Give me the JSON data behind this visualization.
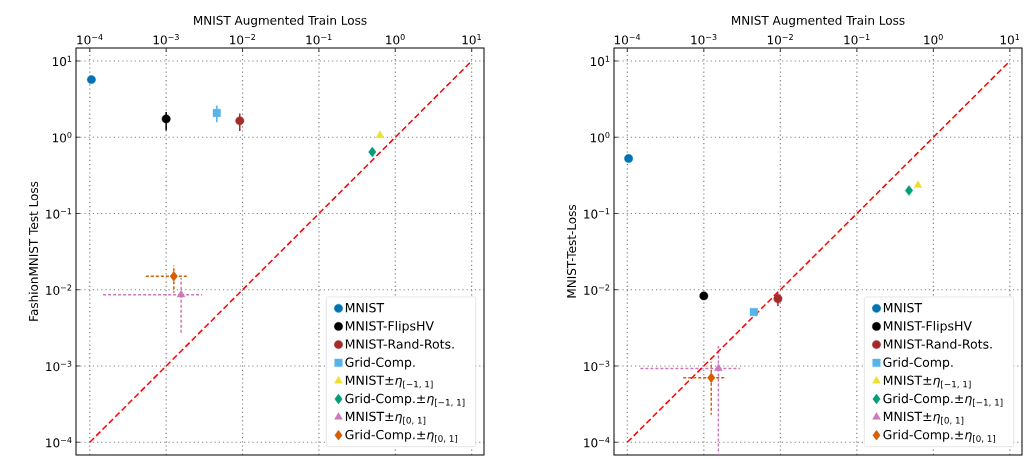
{
  "chart_data": [
    {
      "type": "scatter",
      "xlabel": "MNIST Augmented Train Loss",
      "ylabel": "FashionMNIST Test Loss",
      "log": "xy",
      "grid": true,
      "legend": "bottom right",
      "xlim": [
        6.6e-05,
        14.5
      ],
      "ylim": [
        6.8e-05,
        14.8
      ],
      "xticks": [
        {
          "value": 0.0001,
          "label": "10$^{−4}$"
        },
        {
          "value": 0.001,
          "label": "10$^{−3}$"
        },
        {
          "value": 0.01,
          "label": "10$^{−2}$"
        },
        {
          "value": 0.1,
          "label": "10$^{−1}$"
        },
        {
          "value": 1,
          "label": "10$^{0}$"
        },
        {
          "value": 10,
          "label": "10$^{1}$"
        }
      ],
      "yticks": [
        {
          "value": 0.0001,
          "label": "10$^{−4}$"
        },
        {
          "value": 0.001,
          "label": "10$^{−3}$"
        },
        {
          "value": 0.01,
          "label": "10$^{−2}$"
        },
        {
          "value": 0.1,
          "label": "10$^{−1}$"
        },
        {
          "value": 1,
          "label": "10$^{0}$"
        },
        {
          "value": 10,
          "label": "10$^{1}$"
        }
      ],
      "series": [
        {
          "name": "MNIST",
          "color": "#0173b2",
          "marker": "circle",
          "x": [
            0.000105
          ],
          "values": [
            5.7
          ]
        },
        {
          "name": "MNIST-FlipsHV",
          "color": "#000000",
          "marker": "circle",
          "x": [
            0.001
          ],
          "values": [
            1.74
          ],
          "errors": [
            [
              1.23,
              2.14
            ]
          ]
        },
        {
          "name": "MNIST-Rand-Rots.",
          "color": "#a52a2a",
          "marker": "circle",
          "x": [
            0.0092
          ],
          "values": [
            1.64
          ],
          "errors": [
            [
              1.21,
              2.04
            ]
          ]
        },
        {
          "name": "Grid-Comp.",
          "color": "#56b4e9",
          "marker": "square",
          "x": [
            0.0046
          ],
          "values": [
            2.08
          ],
          "errors": [
            [
              1.57,
              2.6
            ]
          ]
        },
        {
          "name": "MNIST±*η*$_{[−1, 1]}$",
          "color": "#ece133",
          "marker": "triangle",
          "x": [
            0.63
          ],
          "values": [
            1.06
          ]
        },
        {
          "name": "Grid-Comp.±*η*$_{[−1, 1]}$",
          "color": "#029e73",
          "marker": "diamond",
          "x": [
            0.5
          ],
          "values": [
            0.64
          ]
        },
        {
          "name": "MNIST±*η*$_{[0, 1]}$",
          "color": "#cc78bc",
          "marker": "triangle",
          "x": [
            0.00157
          ],
          "values": [
            0.0086
          ],
          "errors": [
            [
              0.00257,
              0.0142
            ]
          ],
          "xerrors": [
            [
              0.000148,
              0.00294
            ]
          ]
        },
        {
          "name": "Grid-Comp.±*η*$_{[0, 1]}$",
          "color": "#d55e00",
          "marker": "diamond",
          "x": [
            0.00126
          ],
          "values": [
            0.015
          ],
          "errors": [
            [
              0.0091,
              0.0208
            ]
          ],
          "xerrors": [
            [
              0.00053,
              0.00196
            ]
          ]
        },
        {
          "type": "line",
          "color": "#ff0000",
          "marker": "none",
          "line_style": "dashed",
          "x": [
            0.0001,
            10
          ],
          "values": [
            0.0001,
            10
          ]
        }
      ]
    },
    {
      "type": "scatter",
      "xlabel": "MNIST Augmented Train Loss",
      "ylabel": "MNIST-Test-Loss",
      "log": "xy",
      "grid": true,
      "legend": "bottom right",
      "xlim": [
        6.7e-05,
        14.4
      ],
      "ylim": [
        6.8e-05,
        14.8
      ],
      "xticks": [
        {
          "value": 0.0001,
          "label": "10$^{−4}$"
        },
        {
          "value": 0.001,
          "label": "10$^{−3}$"
        },
        {
          "value": 0.01,
          "label": "10$^{−2}$"
        },
        {
          "value": 0.1,
          "label": "10$^{−1}$"
        },
        {
          "value": 1,
          "label": "10$^{0}$"
        },
        {
          "value": 10,
          "label": "10$^{1}$"
        }
      ],
      "yticks": [
        {
          "value": 0.0001,
          "label": "10$^{−4}$"
        },
        {
          "value": 0.001,
          "label": "10$^{−3}$"
        },
        {
          "value": 0.01,
          "label": "10$^{−2}$"
        },
        {
          "value": 0.1,
          "label": "10$^{−1}$"
        },
        {
          "value": 1,
          "label": "10$^{0}$"
        },
        {
          "value": 10,
          "label": "10$^{1}$"
        }
      ],
      "series": [
        {
          "name": "MNIST",
          "color": "#0173b2",
          "marker": "circle",
          "x": [
            0.000104
          ],
          "values": [
            0.525
          ]
        },
        {
          "name": "MNIST-FlipsHV",
          "color": "#000000",
          "marker": "circle",
          "x": [
            0.001
          ],
          "values": [
            0.0083
          ]
        },
        {
          "name": "MNIST-Rand-Rots.",
          "color": "#a52a2a",
          "marker": "circle",
          "x": [
            0.0093
          ],
          "values": [
            0.0076
          ],
          "errors": [
            [
              0.0061,
              0.009
            ]
          ]
        },
        {
          "name": "Grid-Comp.",
          "color": "#56b4e9",
          "marker": "square",
          "x": [
            0.0045
          ],
          "values": [
            0.0051
          ]
        },
        {
          "name": "MNIST±*η*$_{[−1, 1]}$",
          "color": "#ece133",
          "marker": "triangle",
          "x": [
            0.63
          ],
          "values": [
            0.235
          ]
        },
        {
          "name": "Grid-Comp.±*η*$_{[−1, 1]}$",
          "color": "#029e73",
          "marker": "diamond",
          "x": [
            0.48
          ],
          "values": [
            0.2
          ]
        },
        {
          "name": "MNIST±*η*$_{[0, 1]}$",
          "color": "#cc78bc",
          "marker": "triangle",
          "x": [
            0.00155
          ],
          "values": [
            0.00093
          ],
          "errors": [
            [
              6.8e-05,
              0.00183
            ]
          ],
          "xerrors": [
            [
              0.000147,
              0.00296
            ]
          ]
        },
        {
          "name": "Grid-Comp.±*η*$_{[0, 1]}$",
          "color": "#d55e00",
          "marker": "diamond",
          "x": [
            0.00125
          ],
          "values": [
            0.0007
          ],
          "errors": [
            [
              0.00023,
              0.00114
            ]
          ],
          "xerrors": [
            [
              0.00052,
              0.00197
            ]
          ]
        },
        {
          "type": "line",
          "color": "#ff0000",
          "marker": "none",
          "line_style": "dashed",
          "x": [
            0.0001,
            10
          ],
          "values": [
            0.0001,
            10
          ]
        }
      ]
    }
  ]
}
